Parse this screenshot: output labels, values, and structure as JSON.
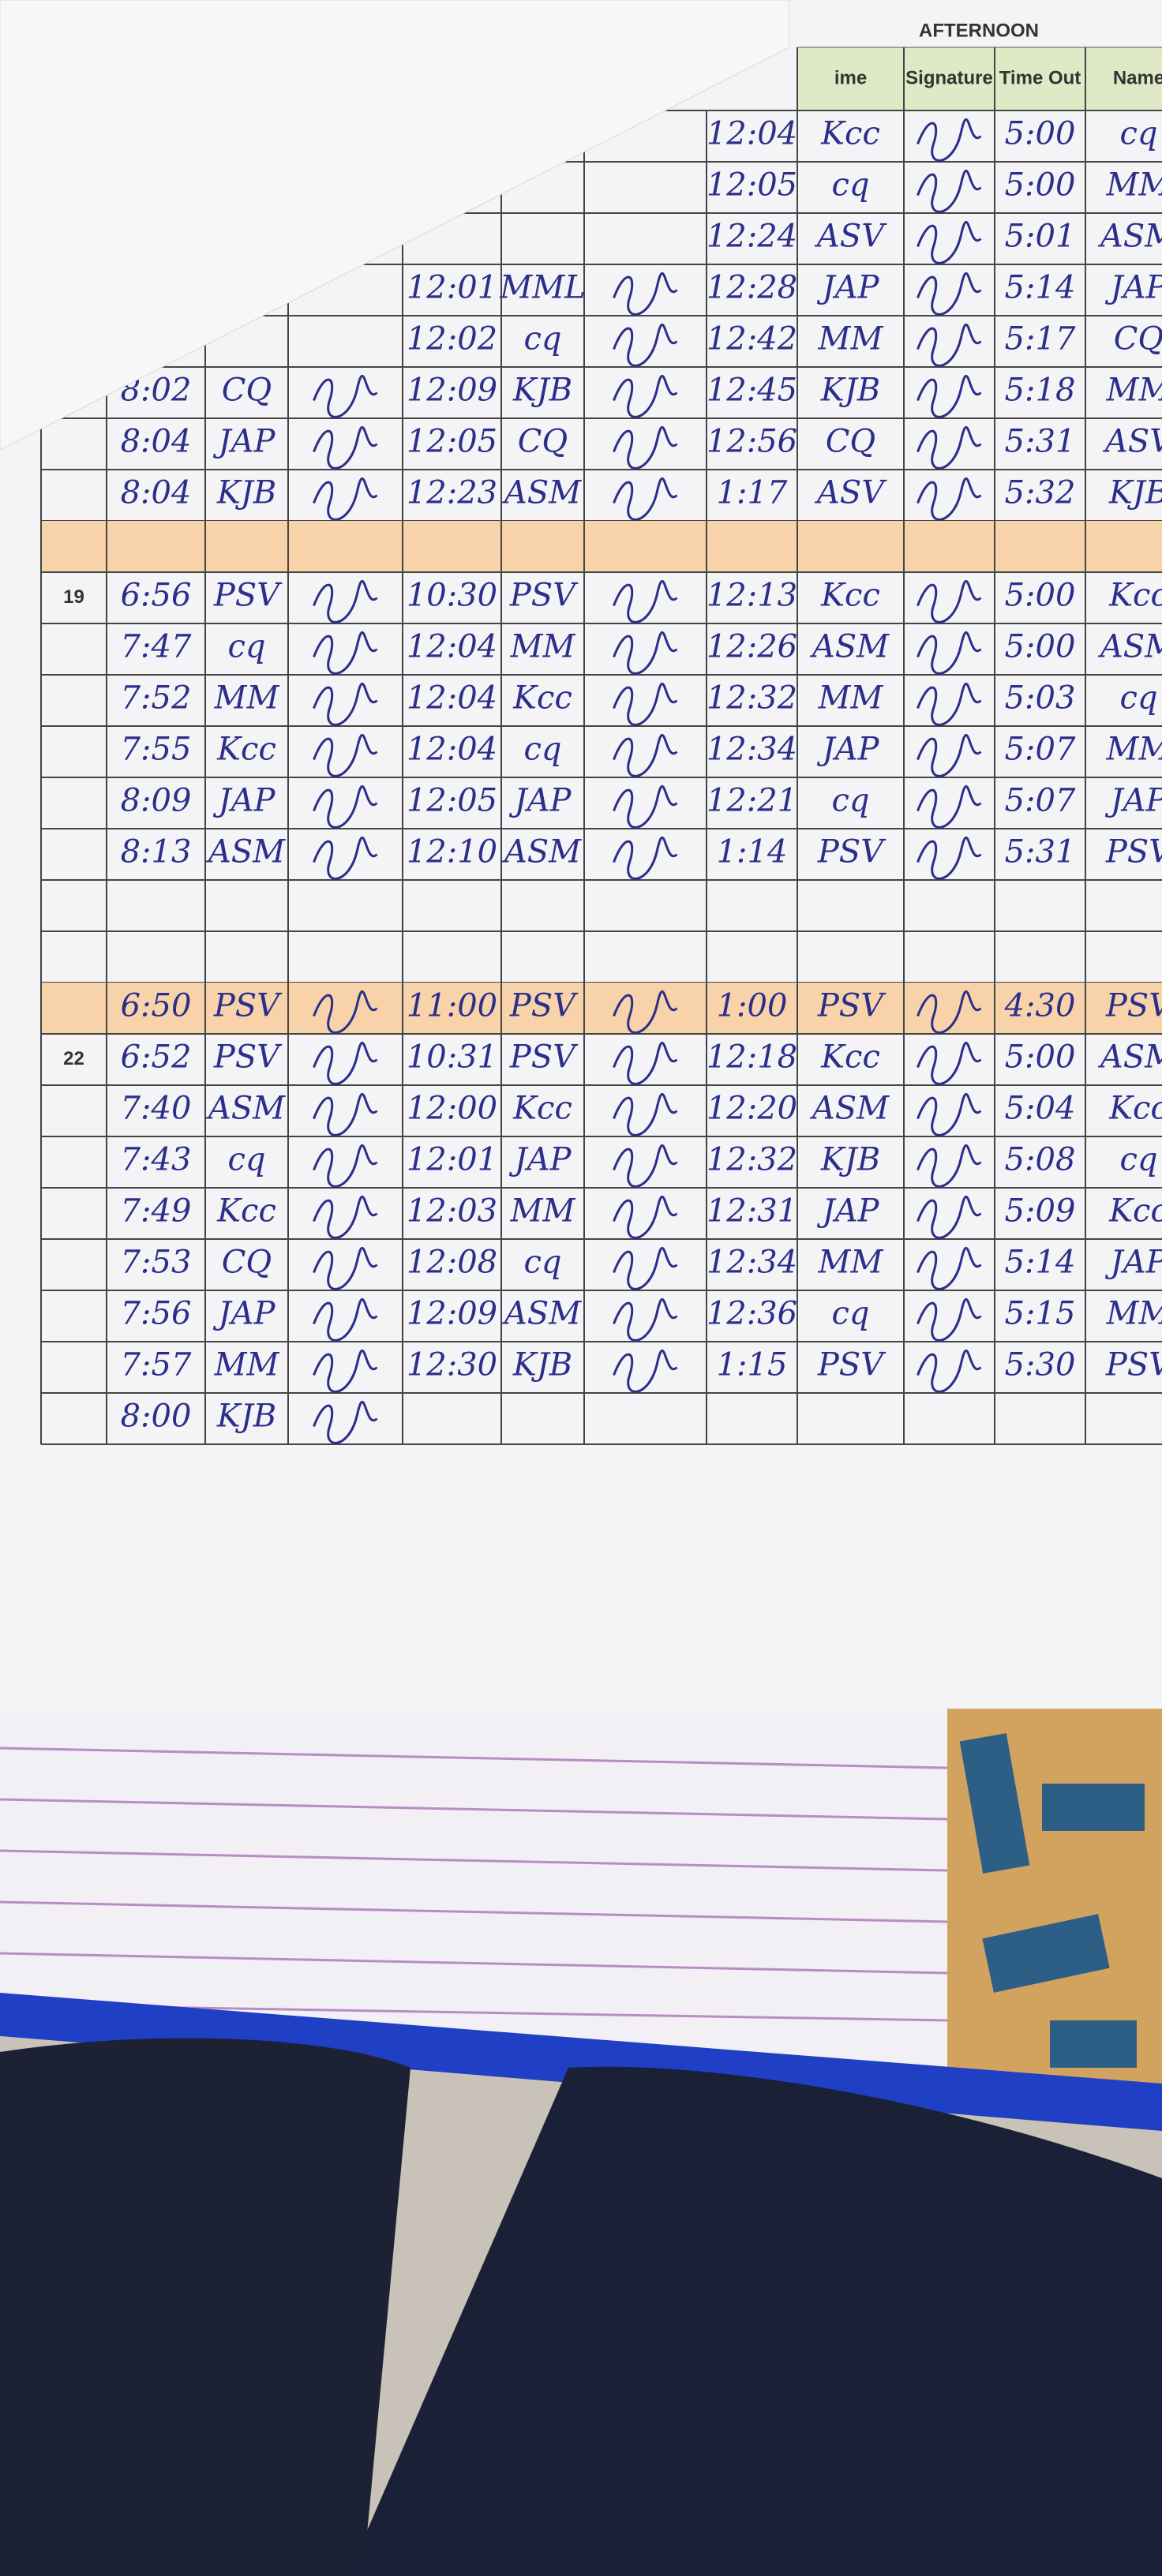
{
  "header": {
    "section": "AFTERNOON",
    "columns": [
      "ime",
      "Signature",
      "Time Out",
      "Name"
    ]
  },
  "sections": [
    {
      "label": null,
      "highlight": false,
      "rows": [
        [
          null,
          null,
          null,
          null,
          "12:04",
          "Kcc",
          "5:00",
          "cq"
        ],
        [
          null,
          null,
          null,
          null,
          "12:05",
          "cq",
          "5:00",
          "MM"
        ],
        [
          null,
          null,
          null,
          null,
          "12:24",
          "ASV",
          "5:01",
          "ASM"
        ],
        [
          null,
          null,
          "12:01",
          "MML",
          "12:28",
          "JAP",
          "5:14",
          "JAP"
        ],
        [
          null,
          null,
          "12:02",
          "cq",
          "12:42",
          "MM",
          "5:17",
          "CQ"
        ],
        [
          "8:02",
          "CQ",
          "12:09",
          "KJB",
          "12:45",
          "KJB",
          "5:18",
          "MM"
        ],
        [
          "8:04",
          "JAP",
          "12:05",
          "CQ",
          "12:56",
          "CQ",
          "5:31",
          "ASV"
        ],
        [
          "8:04",
          "KJB",
          "12:23",
          "ASM",
          "1:17",
          "ASV",
          "5:32",
          "KJB"
        ]
      ]
    },
    {
      "label": null,
      "highlight": true,
      "rows": [
        [
          null,
          null,
          null,
          null,
          null,
          null,
          null,
          null
        ]
      ]
    },
    {
      "label": "19",
      "highlight": false,
      "rows": [
        [
          "6:56",
          "PSV",
          "10:30",
          "PSV",
          "12:13",
          "Kcc",
          "5:00",
          "Kcc"
        ],
        [
          "7:47",
          "cq",
          "12:04",
          "MM",
          "12:26",
          "ASM",
          "5:00",
          "ASM"
        ],
        [
          "7:52",
          "MM",
          "12:04",
          "Kcc",
          "12:32",
          "MM",
          "5:03",
          "cq"
        ],
        [
          "7:55",
          "Kcc",
          "12:04",
          "cq",
          "12:34",
          "JAP",
          "5:07",
          "MM"
        ],
        [
          "8:09",
          "JAP",
          "12:05",
          "JAP",
          "12:21",
          "cq",
          "5:07",
          "JAP"
        ],
        [
          "8:13",
          "ASM",
          "12:10",
          "ASM",
          "1:14",
          "PSV",
          "5:31",
          "PSV"
        ],
        [
          null,
          null,
          null,
          null,
          null,
          null,
          null,
          null
        ],
        [
          null,
          null,
          null,
          null,
          null,
          null,
          null,
          null
        ]
      ]
    },
    {
      "label": null,
      "highlight": true,
      "rows": [
        [
          "6:50",
          "PSV",
          "11:00",
          "PSV",
          "1:00",
          "PSV",
          "4:30",
          "PSV"
        ]
      ]
    },
    {
      "label": "22",
      "highlight": false,
      "rows": [
        [
          "6:52",
          "PSV",
          "10:31",
          "PSV",
          "12:18",
          "Kcc",
          "5:00",
          "ASM"
        ],
        [
          "7:40",
          "ASM",
          "12:00",
          "Kcc",
          "12:20",
          "ASM",
          "5:04",
          "Kcc"
        ],
        [
          "7:43",
          "cq",
          "12:01",
          "JAP",
          "12:32",
          "KJB",
          "5:08",
          "cq"
        ],
        [
          "7:49",
          "Kcc",
          "12:03",
          "MM",
          "12:31",
          "JAP",
          "5:09",
          "Kcc"
        ],
        [
          "7:53",
          "CQ",
          "12:08",
          "cq",
          "12:34",
          "MM",
          "5:14",
          "JAP"
        ],
        [
          "7:56",
          "JAP",
          "12:09",
          "ASM",
          "12:36",
          "cq",
          "5:15",
          "MM"
        ],
        [
          "7:57",
          "MM",
          "12:30",
          "KJB",
          "1:15",
          "PSV",
          "5:30",
          "PSV"
        ],
        [
          "8:00",
          "KJB",
          null,
          null,
          null,
          null,
          null,
          null
        ]
      ]
    }
  ]
}
